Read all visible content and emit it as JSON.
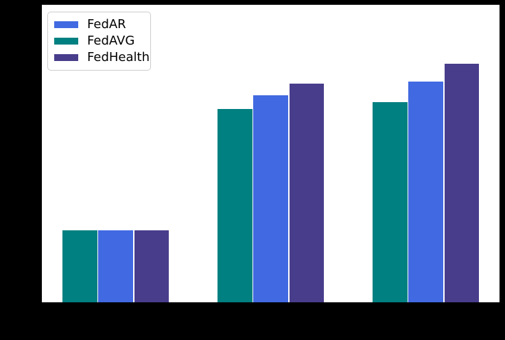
{
  "chart_data": {
    "type": "bar",
    "title": "",
    "xlabel": "",
    "ylabel": "",
    "x": [
      0,
      1,
      2
    ],
    "categories": [
      "",
      "",
      ""
    ],
    "ylim": [
      0,
      1.0
    ],
    "grid": false,
    "tick_labels_visible": false,
    "plot_background": "#ffffff",
    "figure_background": "#000000",
    "legend": {
      "position": "upper-left",
      "border_color": "#cccccc",
      "entries": [
        {
          "label": "FedAR",
          "color": "#4169E1"
        },
        {
          "label": "FedAVG",
          "color": "#008080"
        },
        {
          "label": "FedHealth",
          "color": "#483D8B"
        }
      ]
    },
    "series": [
      {
        "name": "FedAVG",
        "color": "#008080",
        "values": [
          0.242,
          0.65,
          0.673
        ]
      },
      {
        "name": "FedAR",
        "color": "#4169E1",
        "values": [
          0.242,
          0.697,
          0.743
        ]
      },
      {
        "name": "FedHealth",
        "color": "#483D8B",
        "values": [
          0.242,
          0.736,
          0.801
        ]
      }
    ],
    "series_plot_order_left_to_right": [
      "FedAVG",
      "FedAR",
      "FedHealth"
    ]
  }
}
